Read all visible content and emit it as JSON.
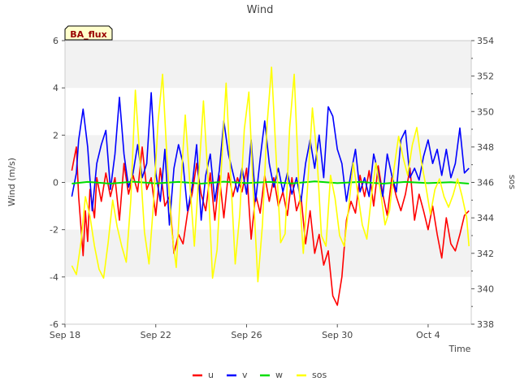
{
  "chart_data": {
    "type": "line",
    "title": "Wind",
    "xlabel": "Time",
    "ylabel": "Wind (m/s)",
    "y2label": "sos",
    "site_label": "BA_flux",
    "x_ticks": [
      {
        "label": "Sep 18",
        "day": 0
      },
      {
        "label": "Sep 22",
        "day": 4
      },
      {
        "label": "Sep 26",
        "day": 8
      },
      {
        "label": "Sep 30",
        "day": 12
      },
      {
        "label": "Oct 4",
        "day": 16
      }
    ],
    "xlim": [
      0,
      17.9
    ],
    "ylim": [
      -6,
      6
    ],
    "y_ticks": [
      "-6",
      "-4",
      "-2",
      "0",
      "2",
      "4",
      "6"
    ],
    "y2lim": [
      338,
      354
    ],
    "y2_ticks": [
      "338",
      "340",
      "342",
      "344",
      "346",
      "348",
      "350",
      "352",
      "354"
    ],
    "grid": "horizontal-bands",
    "legend": [
      "u",
      "v",
      "w",
      "sos"
    ],
    "series": [
      {
        "name": "u",
        "color": "#ff0000",
        "axis": "left",
        "points": [
          [
            0.3,
            0.5
          ],
          [
            0.5,
            1.5
          ],
          [
            0.6,
            -0.6
          ],
          [
            0.8,
            -3.1
          ],
          [
            0.9,
            -1.2
          ],
          [
            1.0,
            -2.5
          ],
          [
            1.1,
            -0.3
          ],
          [
            1.3,
            -1.5
          ],
          [
            1.4,
            0.2
          ],
          [
            1.6,
            -0.8
          ],
          [
            1.8,
            0.4
          ],
          [
            2.0,
            -0.6
          ],
          [
            2.2,
            0.2
          ],
          [
            2.4,
            -1.6
          ],
          [
            2.6,
            0.8
          ],
          [
            2.8,
            -0.5
          ],
          [
            3.0,
            0.3
          ],
          [
            3.2,
            -0.4
          ],
          [
            3.4,
            1.5
          ],
          [
            3.6,
            -0.3
          ],
          [
            3.8,
            0.2
          ],
          [
            4.0,
            -1.4
          ],
          [
            4.2,
            0.6
          ],
          [
            4.4,
            -1.0
          ],
          [
            4.6,
            -0.6
          ],
          [
            4.8,
            -3.0
          ],
          [
            5.0,
            -2.2
          ],
          [
            5.2,
            -2.6
          ],
          [
            5.4,
            -1.3
          ],
          [
            5.6,
            -0.5
          ],
          [
            5.8,
            0.8
          ],
          [
            6.0,
            -0.5
          ],
          [
            6.2,
            -1.2
          ],
          [
            6.4,
            0.4
          ],
          [
            6.6,
            -1.6
          ],
          [
            6.8,
            0.3
          ],
          [
            7.0,
            -1.5
          ],
          [
            7.2,
            0.4
          ],
          [
            7.4,
            -0.6
          ],
          [
            7.6,
            0.2
          ],
          [
            7.8,
            -0.4
          ],
          [
            8.0,
            0.6
          ],
          [
            8.2,
            -2.4
          ],
          [
            8.4,
            -0.5
          ],
          [
            8.6,
            -1.3
          ],
          [
            8.8,
            0.3
          ],
          [
            9.0,
            -0.8
          ],
          [
            9.2,
            0.2
          ],
          [
            9.4,
            -1.0
          ],
          [
            9.6,
            -0.4
          ],
          [
            9.8,
            -1.4
          ],
          [
            10.0,
            0.2
          ],
          [
            10.2,
            -1.2
          ],
          [
            10.4,
            -0.6
          ],
          [
            10.6,
            -2.6
          ],
          [
            10.8,
            -1.2
          ],
          [
            11.0,
            -3.0
          ],
          [
            11.2,
            -2.2
          ],
          [
            11.4,
            -3.5
          ],
          [
            11.6,
            -2.9
          ],
          [
            11.8,
            -4.8
          ],
          [
            12.0,
            -5.2
          ],
          [
            12.2,
            -4.0
          ],
          [
            12.4,
            -1.6
          ],
          [
            12.6,
            -0.8
          ],
          [
            12.8,
            -1.3
          ],
          [
            13.0,
            0.3
          ],
          [
            13.2,
            -0.6
          ],
          [
            13.4,
            0.5
          ],
          [
            13.6,
            -1.0
          ],
          [
            13.8,
            0.7
          ],
          [
            14.0,
            -0.5
          ],
          [
            14.2,
            -1.4
          ],
          [
            14.4,
            0.2
          ],
          [
            14.6,
            -0.6
          ],
          [
            14.8,
            -1.2
          ],
          [
            15.0,
            -0.5
          ],
          [
            15.2,
            0.6
          ],
          [
            15.4,
            -1.6
          ],
          [
            15.6,
            -0.5
          ],
          [
            15.8,
            -1.2
          ],
          [
            16.0,
            -2.0
          ],
          [
            16.2,
            -1.0
          ],
          [
            16.4,
            -2.2
          ],
          [
            16.6,
            -3.2
          ],
          [
            16.8,
            -1.5
          ],
          [
            17.0,
            -2.6
          ],
          [
            17.2,
            -2.9
          ],
          [
            17.4,
            -2.2
          ],
          [
            17.6,
            -1.4
          ],
          [
            17.8,
            -1.2
          ]
        ]
      },
      {
        "name": "v",
        "color": "#0000ff",
        "axis": "left",
        "points": [
          [
            0.3,
            -0.6
          ],
          [
            0.5,
            0.4
          ],
          [
            0.6,
            1.8
          ],
          [
            0.8,
            3.1
          ],
          [
            1.0,
            1.5
          ],
          [
            1.2,
            -1.2
          ],
          [
            1.4,
            0.8
          ],
          [
            1.6,
            1.6
          ],
          [
            1.8,
            2.2
          ],
          [
            2.0,
            -0.3
          ],
          [
            2.2,
            1.2
          ],
          [
            2.4,
            3.6
          ],
          [
            2.6,
            1.2
          ],
          [
            2.8,
            -0.2
          ],
          [
            3.0,
            0.4
          ],
          [
            3.2,
            1.6
          ],
          [
            3.4,
            0.2
          ],
          [
            3.6,
            0.8
          ],
          [
            3.8,
            3.8
          ],
          [
            4.0,
            0.4
          ],
          [
            4.2,
            -0.8
          ],
          [
            4.4,
            1.4
          ],
          [
            4.6,
            -1.8
          ],
          [
            4.8,
            0.6
          ],
          [
            5.0,
            1.6
          ],
          [
            5.2,
            0.8
          ],
          [
            5.4,
            -1.2
          ],
          [
            5.6,
            -0.2
          ],
          [
            5.8,
            1.6
          ],
          [
            6.0,
            -1.6
          ],
          [
            6.2,
            0.3
          ],
          [
            6.4,
            1.2
          ],
          [
            6.6,
            -0.8
          ],
          [
            6.8,
            0.5
          ],
          [
            7.0,
            2.6
          ],
          [
            7.2,
            1.2
          ],
          [
            7.4,
            0.4
          ],
          [
            7.6,
            -0.4
          ],
          [
            7.8,
            0.6
          ],
          [
            8.0,
            -0.5
          ],
          [
            8.2,
            1.8
          ],
          [
            8.4,
            -0.8
          ],
          [
            8.6,
            1.0
          ],
          [
            8.8,
            2.6
          ],
          [
            9.0,
            0.8
          ],
          [
            9.2,
            -0.2
          ],
          [
            9.4,
            0.6
          ],
          [
            9.6,
            -0.4
          ],
          [
            9.8,
            0.4
          ],
          [
            10.0,
            -0.5
          ],
          [
            10.2,
            0.2
          ],
          [
            10.4,
            -0.8
          ],
          [
            10.6,
            0.8
          ],
          [
            10.8,
            1.8
          ],
          [
            11.0,
            0.6
          ],
          [
            11.2,
            2.0
          ],
          [
            11.4,
            0.2
          ],
          [
            11.6,
            3.2
          ],
          [
            11.8,
            2.8
          ],
          [
            12.0,
            1.4
          ],
          [
            12.2,
            0.8
          ],
          [
            12.4,
            -0.8
          ],
          [
            12.6,
            0.4
          ],
          [
            12.8,
            1.4
          ],
          [
            13.0,
            -0.4
          ],
          [
            13.2,
            0.2
          ],
          [
            13.4,
            -0.6
          ],
          [
            13.6,
            1.2
          ],
          [
            13.8,
            0.4
          ],
          [
            14.0,
            -0.6
          ],
          [
            14.2,
            1.2
          ],
          [
            14.4,
            0.3
          ],
          [
            14.6,
            -0.4
          ],
          [
            14.8,
            1.8
          ],
          [
            15.0,
            2.2
          ],
          [
            15.2,
            0.2
          ],
          [
            15.4,
            0.6
          ],
          [
            15.6,
            0.1
          ],
          [
            15.8,
            1.1
          ],
          [
            16.0,
            1.8
          ],
          [
            16.2,
            0.8
          ],
          [
            16.4,
            1.4
          ],
          [
            16.6,
            0.3
          ],
          [
            16.8,
            1.4
          ],
          [
            17.0,
            0.2
          ],
          [
            17.2,
            0.8
          ],
          [
            17.4,
            2.3
          ],
          [
            17.6,
            0.4
          ],
          [
            17.8,
            0.6
          ]
        ]
      },
      {
        "name": "w",
        "color": "#00dd00",
        "axis": "left",
        "points": [
          [
            0.3,
            -0.05
          ],
          [
            1.0,
            0.02
          ],
          [
            2.0,
            -0.05
          ],
          [
            3.0,
            0.03
          ],
          [
            4.0,
            -0.04
          ],
          [
            5.0,
            0.02
          ],
          [
            6.0,
            -0.05
          ],
          [
            7.0,
            0.03
          ],
          [
            8.0,
            -0.03
          ],
          [
            9.0,
            0.02
          ],
          [
            10.0,
            -0.04
          ],
          [
            11.0,
            0.04
          ],
          [
            12.0,
            -0.03
          ],
          [
            13.0,
            0.02
          ],
          [
            14.0,
            -0.05
          ],
          [
            15.0,
            0.02
          ],
          [
            16.0,
            -0.03
          ],
          [
            17.0,
            0.01
          ],
          [
            17.8,
            -0.05
          ]
        ]
      },
      {
        "name": "sos",
        "color": "#ffff00",
        "axis": "right",
        "points": [
          [
            0.3,
            341.3
          ],
          [
            0.5,
            340.8
          ],
          [
            0.7,
            342.6
          ],
          [
            0.9,
            345.2
          ],
          [
            1.1,
            344.1
          ],
          [
            1.3,
            342.4
          ],
          [
            1.5,
            341.1
          ],
          [
            1.7,
            340.6
          ],
          [
            1.9,
            342.6
          ],
          [
            2.1,
            345.0
          ],
          [
            2.3,
            343.5
          ],
          [
            2.5,
            342.4
          ],
          [
            2.7,
            341.5
          ],
          [
            2.9,
            345.0
          ],
          [
            3.1,
            351.2
          ],
          [
            3.3,
            347.3
          ],
          [
            3.5,
            343.2
          ],
          [
            3.7,
            341.4
          ],
          [
            3.9,
            344.8
          ],
          [
            4.1,
            349.4
          ],
          [
            4.3,
            352.1
          ],
          [
            4.5,
            347.2
          ],
          [
            4.7,
            343.3
          ],
          [
            4.9,
            341.2
          ],
          [
            5.1,
            345.8
          ],
          [
            5.3,
            349.8
          ],
          [
            5.5,
            346.0
          ],
          [
            5.7,
            342.4
          ],
          [
            5.9,
            346.5
          ],
          [
            6.1,
            350.6
          ],
          [
            6.3,
            346.2
          ],
          [
            6.5,
            340.6
          ],
          [
            6.7,
            342.2
          ],
          [
            6.9,
            347.0
          ],
          [
            7.1,
            351.6
          ],
          [
            7.3,
            346.4
          ],
          [
            7.5,
            341.4
          ],
          [
            7.7,
            344.2
          ],
          [
            7.9,
            349.0
          ],
          [
            8.1,
            351.1
          ],
          [
            8.3,
            345.4
          ],
          [
            8.5,
            340.4
          ],
          [
            8.7,
            343.6
          ],
          [
            8.9,
            349.2
          ],
          [
            9.1,
            352.5
          ],
          [
            9.3,
            347.5
          ],
          [
            9.5,
            342.6
          ],
          [
            9.7,
            343.1
          ],
          [
            9.9,
            349.1
          ],
          [
            10.1,
            352.1
          ],
          [
            10.3,
            346.0
          ],
          [
            10.5,
            342.0
          ],
          [
            10.7,
            346.0
          ],
          [
            10.9,
            350.2
          ],
          [
            11.1,
            347.5
          ],
          [
            11.3,
            343.0
          ],
          [
            11.5,
            342.4
          ],
          [
            11.7,
            346.4
          ],
          [
            11.9,
            345.1
          ],
          [
            12.1,
            343.0
          ],
          [
            12.3,
            342.4
          ],
          [
            12.5,
            344.6
          ],
          [
            12.7,
            347.1
          ],
          [
            12.9,
            345.4
          ],
          [
            13.1,
            343.6
          ],
          [
            13.3,
            342.8
          ],
          [
            13.5,
            345.2
          ],
          [
            13.7,
            347.1
          ],
          [
            13.9,
            345.5
          ],
          [
            14.1,
            343.6
          ],
          [
            14.3,
            344.4
          ],
          [
            14.5,
            346.8
          ],
          [
            14.7,
            348.6
          ],
          [
            14.9,
            347.4
          ],
          [
            15.1,
            346.4
          ],
          [
            15.3,
            348.1
          ],
          [
            15.5,
            349.1
          ],
          [
            15.7,
            347.2
          ],
          [
            15.9,
            345.8
          ],
          [
            16.1,
            344.2
          ],
          [
            16.3,
            345.6
          ],
          [
            16.5,
            346.2
          ],
          [
            16.7,
            345.2
          ],
          [
            16.9,
            344.6
          ],
          [
            17.1,
            345.3
          ],
          [
            17.3,
            346.2
          ],
          [
            17.5,
            345.2
          ],
          [
            17.7,
            344.0
          ],
          [
            17.8,
            342.4
          ]
        ]
      }
    ]
  }
}
